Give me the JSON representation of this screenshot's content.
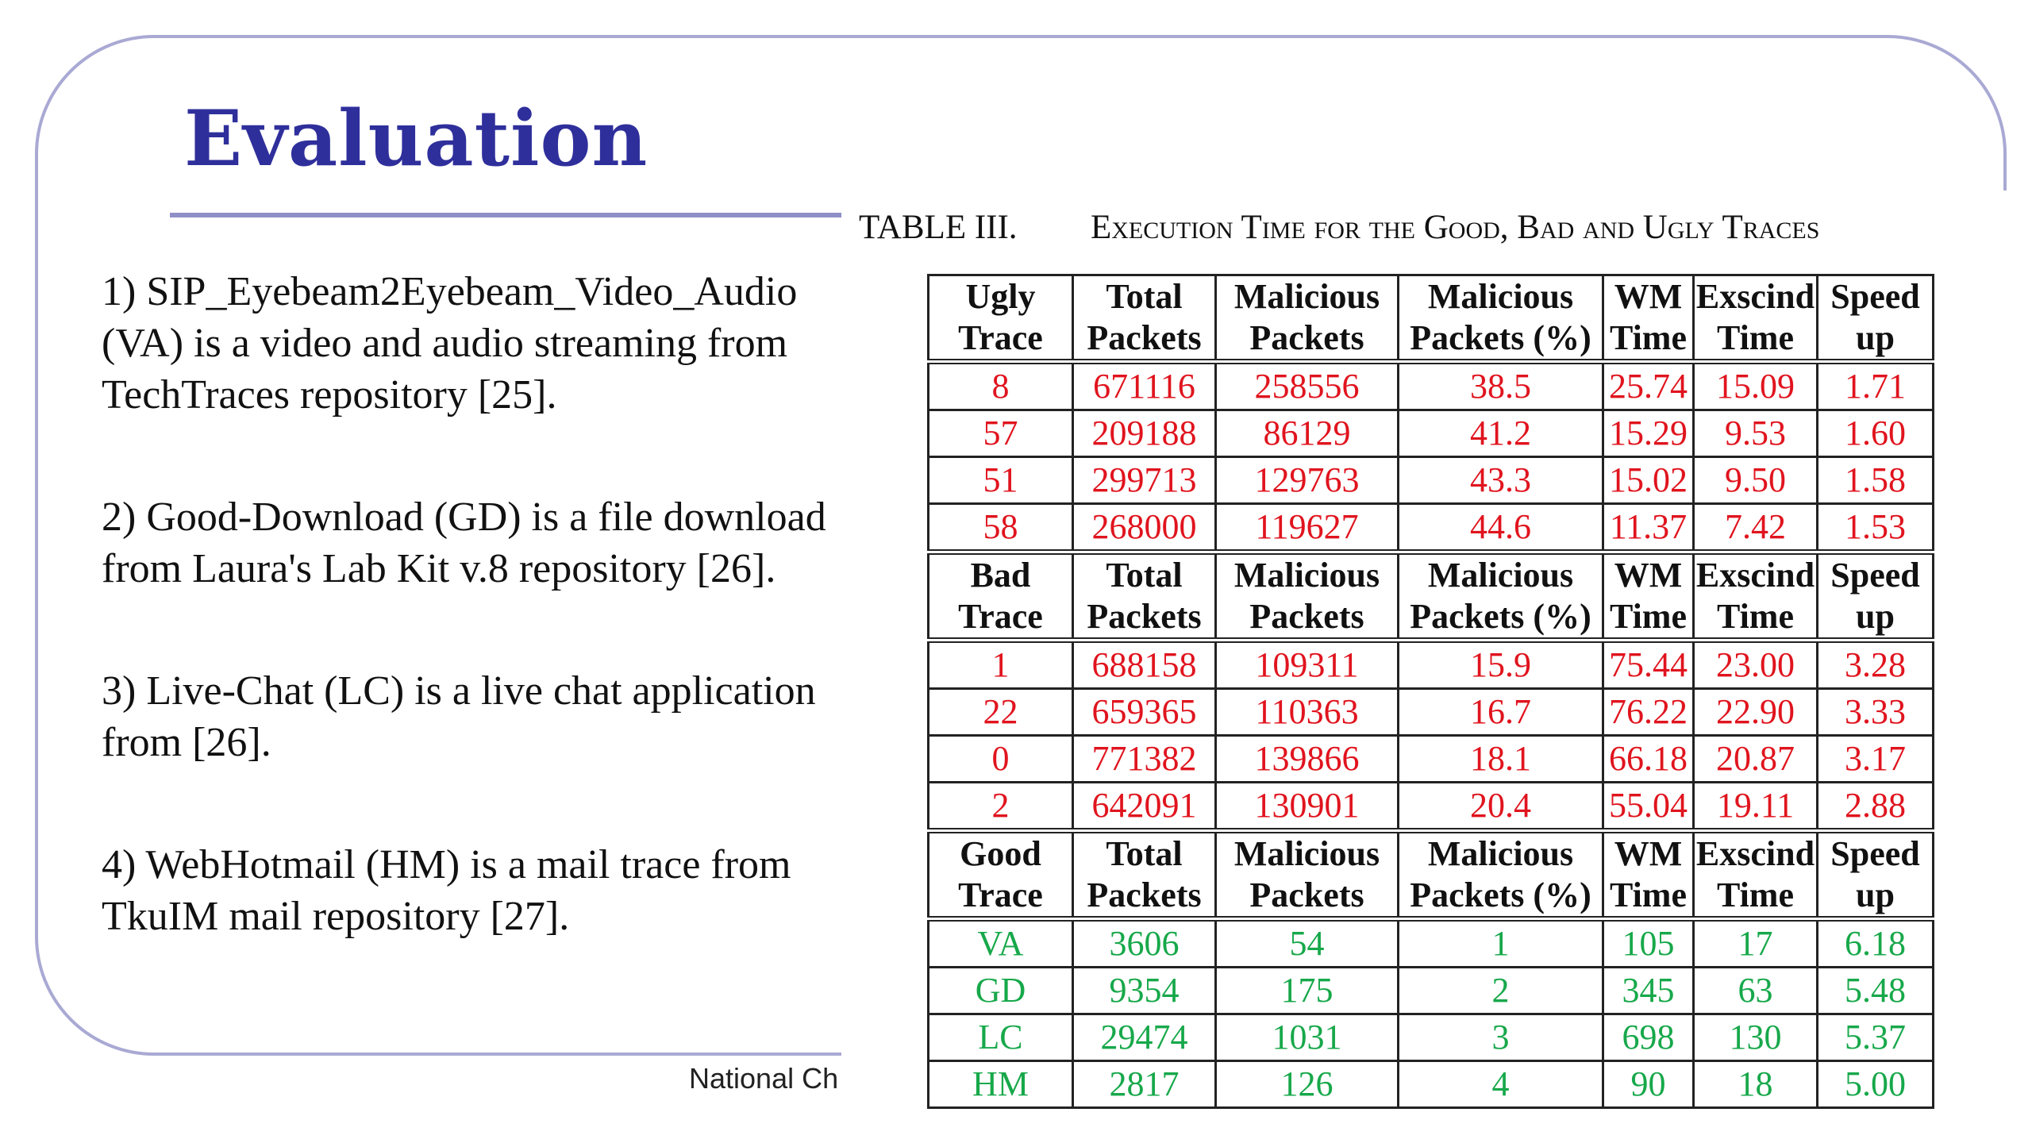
{
  "slide": {
    "title": "Evaluation",
    "footer": "National Ch",
    "paragraphs": [
      "1) SIP_Eyebeam2Eyebeam_Video_Audio (VA) is a video and audio streaming from TechTraces repository [25].",
      "2) Good-Download (GD) is a file download from Laura's Lab Kit v.8 repository [26].",
      "3) Live-Chat (LC) is a live chat application from [26].",
      "4) WebHotmail (HM) is a mail trace from TkuIM mail repository [27]."
    ]
  },
  "table": {
    "label": "TABLE III.",
    "caption": "Execution Time for the Good, Bad and Ugly Traces",
    "sections": [
      {
        "header": [
          [
            "Ugly",
            "Trace"
          ],
          [
            "Total",
            "Packets"
          ],
          [
            "Malicious",
            "Packets"
          ],
          [
            "Malicious",
            "Packets (%)"
          ],
          [
            "WM",
            "Time"
          ],
          [
            "Exscind",
            "Time"
          ],
          [
            "Speed",
            "up"
          ]
        ],
        "rows": [
          [
            "8",
            "671116",
            "258556",
            "38.5",
            "25.74",
            "15.09",
            "1.71"
          ],
          [
            "57",
            "209188",
            "86129",
            "41.2",
            "15.29",
            "9.53",
            "1.60"
          ],
          [
            "51",
            "299713",
            "129763",
            "43.3",
            "15.02",
            "9.50",
            "1.58"
          ],
          [
            "58",
            "268000",
            "119627",
            "44.6",
            "11.37",
            "7.42",
            "1.53"
          ]
        ]
      },
      {
        "header": [
          [
            "Bad",
            "Trace"
          ],
          [
            "Total",
            "Packets"
          ],
          [
            "Malicious",
            "Packets"
          ],
          [
            "Malicious",
            "Packets (%)"
          ],
          [
            "WM",
            "Time"
          ],
          [
            "Exscind",
            "Time"
          ],
          [
            "Speed",
            "up"
          ]
        ],
        "rows": [
          [
            "1",
            "688158",
            "109311",
            "15.9",
            "75.44",
            "23.00",
            "3.28"
          ],
          [
            "22",
            "659365",
            "110363",
            "16.7",
            "76.22",
            "22.90",
            "3.33"
          ],
          [
            "0",
            "771382",
            "139866",
            "18.1",
            "66.18",
            "20.87",
            "3.17"
          ],
          [
            "2",
            "642091",
            "130901",
            "20.4",
            "55.04",
            "19.11",
            "2.88"
          ]
        ]
      },
      {
        "header": [
          [
            "Good",
            "Trace"
          ],
          [
            "Total",
            "Packets"
          ],
          [
            "Malicious",
            "Packets"
          ],
          [
            "Malicious",
            "Packets (%)"
          ],
          [
            "WM",
            "Time"
          ],
          [
            "Exscind",
            "Time"
          ],
          [
            "Speed",
            "up"
          ]
        ],
        "rows": [
          [
            "VA",
            "3606",
            "54",
            "1",
            "105",
            "17",
            "6.18"
          ],
          [
            "GD",
            "9354",
            "175",
            "2",
            "345",
            "63",
            "5.48"
          ],
          [
            "LC",
            "29474",
            "1031",
            "3",
            "698",
            "130",
            "5.37"
          ],
          [
            "HM",
            "2817",
            "126",
            "4",
            "90",
            "18",
            "5.00"
          ]
        ]
      }
    ]
  },
  "colors": {
    "title": "#2f2f9c",
    "frame": "#a9a9d4",
    "ugly_bad_text": "#e0141e",
    "good_text": "#17a84a"
  }
}
